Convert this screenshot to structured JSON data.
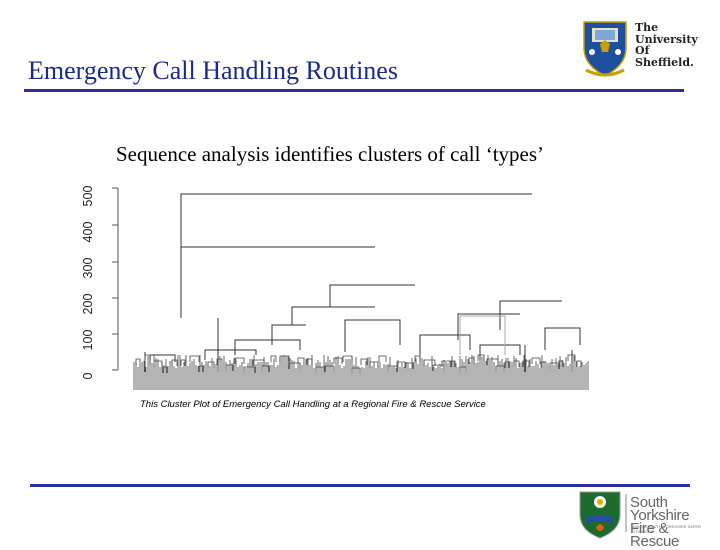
{
  "slide": {
    "title": "Emergency Call Handling Routines",
    "subtitle": "Sequence analysis identifies clusters of call ‘types’",
    "caption": "This Cluster Plot of Emergency Call Handling at a Regional Fire & Rescue Service"
  },
  "university_logo": {
    "line1": "The",
    "line2": "University",
    "line3": "Of",
    "line4": "Sheffield.",
    "icon": "shield-crest-icon"
  },
  "fire_logo": {
    "line1": "South Yorkshire",
    "line2": "Fire & Rescue",
    "tagline": "MAKING SOUTH YORKSHIRE SAFER STRONGER",
    "icon": "fire-rescue-crest-icon"
  },
  "colors": {
    "title": "#1a2a8c",
    "rule": "#2a2fa0",
    "dendrogram": "#333333"
  },
  "chart_data": {
    "type": "dendrogram",
    "y_ticks": [
      "0",
      "100",
      "200",
      "300",
      "400",
      "500"
    ],
    "ylim": [
      0,
      500
    ]
  }
}
